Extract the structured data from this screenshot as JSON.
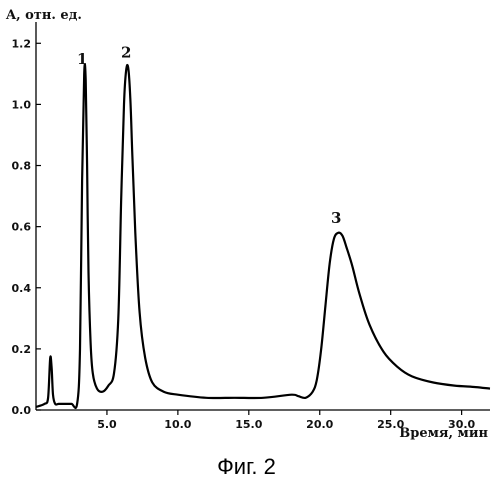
{
  "caption": "Фиг. 2",
  "chart_data": {
    "type": "line",
    "ylabel": "A, отн. ед.",
    "xlabel": "Время, мин",
    "xlim": [
      0,
      32
    ],
    "ylim": [
      0,
      1.25
    ],
    "x_ticks": [
      5.0,
      10.0,
      15.0,
      20.0,
      25.0,
      30.0
    ],
    "x_tick_labels": [
      "5.0",
      "10.0",
      "15.0",
      "20.0",
      "25.0",
      "30.0"
    ],
    "y_ticks": [
      0.0,
      0.2,
      0.4,
      0.6,
      0.8,
      1.0,
      1.2
    ],
    "y_tick_labels": [
      "0.0",
      "0.2",
      "0.4",
      "0.6",
      "0.8",
      "1.0",
      "1.2"
    ],
    "grid": false,
    "line_color": "#000000",
    "series": [
      {
        "x": [
          0.0,
          0.6,
          0.85,
          1.0,
          1.1,
          1.2,
          1.35,
          1.6,
          2.0,
          2.5,
          2.9,
          3.1,
          3.25,
          3.4,
          3.5,
          3.6,
          3.7,
          3.85,
          4.0,
          4.3,
          4.7,
          5.1,
          5.5,
          5.8,
          6.0,
          6.2,
          6.35,
          6.5,
          6.65,
          6.8,
          7.0,
          7.3,
          7.7,
          8.2,
          9.0,
          10.0,
          12.0,
          14.0,
          16.0,
          18.0,
          18.5,
          19.0,
          19.5,
          19.8,
          20.1,
          20.4,
          20.7,
          21.0,
          21.3,
          21.6,
          21.9,
          22.3,
          22.8,
          23.5,
          24.5,
          25.5,
          26.5,
          28.0,
          29.5,
          31.0,
          32.0
        ],
        "y": [
          0.01,
          0.02,
          0.04,
          0.17,
          0.14,
          0.05,
          0.02,
          0.02,
          0.02,
          0.02,
          0.02,
          0.2,
          0.75,
          1.1,
          1.08,
          0.8,
          0.45,
          0.22,
          0.12,
          0.07,
          0.06,
          0.08,
          0.12,
          0.3,
          0.68,
          1.0,
          1.11,
          1.12,
          1.02,
          0.82,
          0.58,
          0.32,
          0.17,
          0.09,
          0.06,
          0.05,
          0.04,
          0.04,
          0.04,
          0.05,
          0.045,
          0.04,
          0.06,
          0.1,
          0.2,
          0.34,
          0.48,
          0.56,
          0.58,
          0.57,
          0.53,
          0.47,
          0.38,
          0.28,
          0.19,
          0.14,
          0.11,
          0.09,
          0.08,
          0.075,
          0.07
        ]
      }
    ],
    "peak_labels": [
      {
        "label": "1",
        "x": 3.4,
        "y": 1.1
      },
      {
        "label": "2",
        "x": 6.5,
        "y": 1.12
      },
      {
        "label": "3",
        "x": 21.3,
        "y": 0.58
      }
    ]
  }
}
